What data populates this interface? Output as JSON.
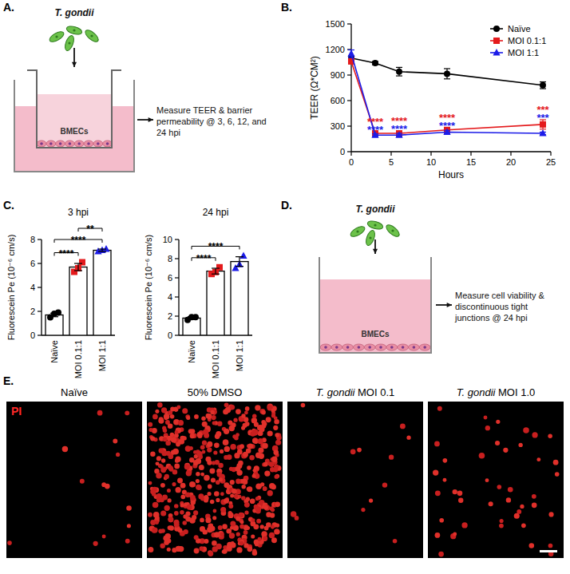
{
  "panels": {
    "A": {
      "label": "A.",
      "organism": "T. gondii",
      "cells": "BMECs",
      "text": "Measure TEER & barrier permeability @ 3, 6, 12, and 24 hpi"
    },
    "B": {
      "label": "B."
    },
    "C": {
      "label": "C."
    },
    "D": {
      "label": "D.",
      "organism": "T. gondii",
      "cells": "BMECs",
      "text": "Measure cell viability & discontinuous tight junctions @ 24 hpi"
    },
    "E": {
      "label": "E.",
      "stain": "PI",
      "images": [
        "Naïve",
        "50% DMSO",
        "T. gondii MOI 0.1",
        "T. gondii MOI 1.0"
      ]
    }
  },
  "chart_data": [
    {
      "type": "line",
      "x_label": "Hours",
      "y_label": "TEER (Ω*CM²)",
      "xlim": [
        0,
        25
      ],
      "xticks": [
        0,
        5,
        10,
        15,
        20,
        25
      ],
      "ylim": [
        0,
        1500
      ],
      "yticks": [
        0,
        300,
        600,
        900,
        1200,
        1500
      ],
      "legend": "upper right",
      "x": [
        0,
        3,
        6,
        12,
        24
      ],
      "series": [
        {
          "name": "Naïve",
          "color": "#000000",
          "marker": "circle",
          "values": [
            1100,
            1040,
            940,
            915,
            780
          ],
          "errors": [
            25,
            20,
            50,
            60,
            40
          ]
        },
        {
          "name": "MOI 0.1:1",
          "color": "#e41a1c",
          "marker": "square",
          "values": [
            1060,
            215,
            215,
            255,
            320
          ],
          "errors": [
            20,
            20,
            25,
            25,
            55
          ],
          "significance": [
            null,
            "****",
            "****",
            "****",
            "***"
          ]
        },
        {
          "name": "MOI 1:1",
          "color": "#1c1ce8",
          "marker": "triangle",
          "values": [
            1150,
            195,
            195,
            230,
            215
          ],
          "errors": [
            45,
            15,
            20,
            20,
            15
          ],
          "significance": [
            null,
            "****",
            "****",
            "****",
            "***"
          ]
        }
      ]
    },
    {
      "type": "bar",
      "title": "3 hpi",
      "y_label": "Fluorescein Pe (10⁻⁶ cm/s)",
      "categories": [
        "Naïve",
        "MOI 0.1:1",
        "MOI 1:1"
      ],
      "values": [
        1.7,
        5.7,
        7.1
      ],
      "errors": [
        0.15,
        0.3,
        0.1
      ],
      "points": [
        [
          1.5,
          1.8,
          1.9
        ],
        [
          5.3,
          5.6,
          6.1
        ],
        [
          7.0,
          7.1,
          7.2
        ]
      ],
      "colors": [
        "#000000",
        "#e41a1c",
        "#1c1ce8"
      ],
      "ylim": [
        0,
        8
      ],
      "yticks": [
        0,
        2,
        4,
        6,
        8
      ],
      "comparisons": [
        {
          "from": 0,
          "to": 1,
          "text": "****"
        },
        {
          "from": 0,
          "to": 2,
          "text": "****"
        },
        {
          "from": 1,
          "to": 2,
          "text": "**"
        }
      ]
    },
    {
      "type": "bar",
      "title": "24 hpi",
      "y_label": "Fluorescein Pe (10⁻⁶ cm/s)",
      "categories": [
        "Naïve",
        "MOI 0.1:1",
        "MOI 1:1"
      ],
      "values": [
        1.8,
        6.7,
        7.7
      ],
      "errors": [
        0.15,
        0.3,
        0.5
      ],
      "points": [
        [
          1.6,
          1.9,
          1.9
        ],
        [
          6.4,
          6.6,
          7.1
        ],
        [
          7.0,
          7.4,
          8.3
        ]
      ],
      "colors": [
        "#000000",
        "#e41a1c",
        "#1c1ce8"
      ],
      "ylim": [
        0,
        10
      ],
      "yticks": [
        0,
        2,
        4,
        6,
        8,
        10
      ],
      "comparisons": [
        {
          "from": 0,
          "to": 1,
          "text": "****"
        },
        {
          "from": 0,
          "to": 2,
          "text": "****"
        }
      ]
    }
  ]
}
